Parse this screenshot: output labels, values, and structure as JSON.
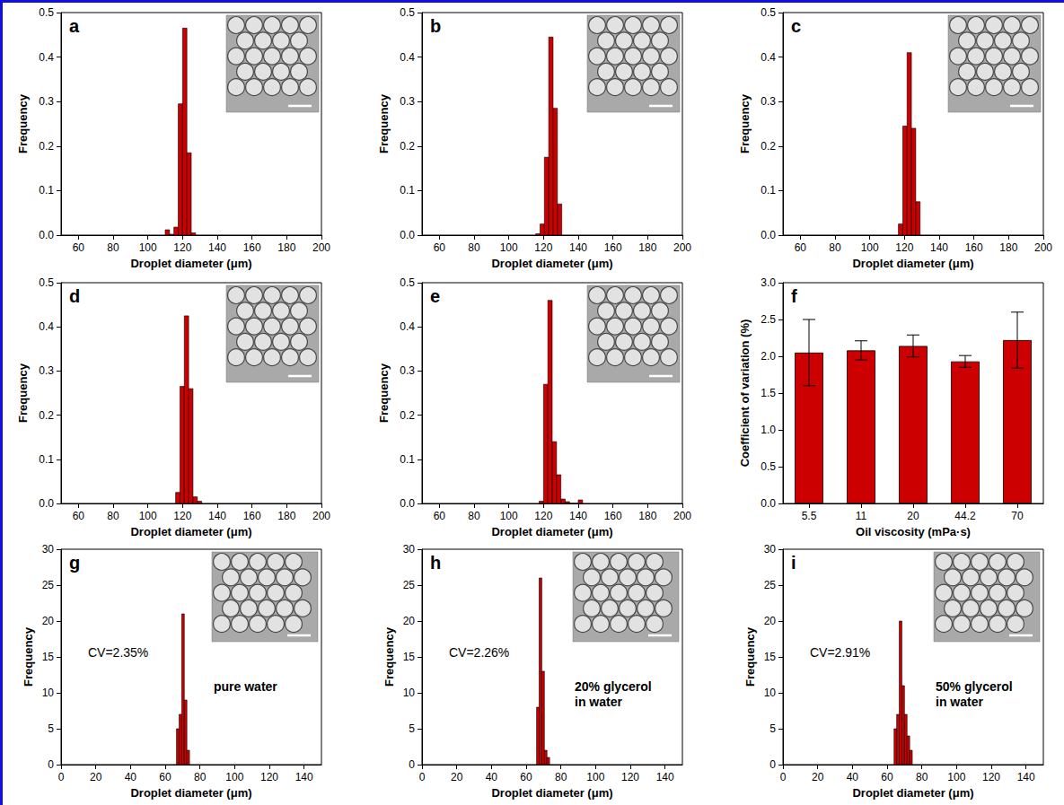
{
  "chart_data": [
    {
      "type": "histogram",
      "panel": "a",
      "x_label": "Droplet diameter (μm)",
      "y_label": "Frequency",
      "bins": [
        110,
        112.5,
        115,
        117.5,
        120,
        122.5,
        125,
        127.5
      ],
      "counts": [
        0.012,
        0.002,
        0.018,
        0.295,
        0.465,
        0.185,
        0.005
      ],
      "color": "#cc0000",
      "xlim": [
        50,
        200
      ],
      "xticks": [
        60,
        80,
        100,
        120,
        140,
        160,
        180,
        200
      ],
      "ylim": [
        0,
        0.5
      ],
      "yticks": [
        {
          "value": 0,
          "label": "0.0"
        },
        0.1,
        0.2,
        0.3,
        0.4,
        0.5
      ],
      "grid": false
    },
    {
      "type": "histogram",
      "panel": "b",
      "x_label": "Droplet diameter (μm)",
      "y_label": "Frequency",
      "bins": [
        115.5,
        118,
        120.5,
        123,
        125.5,
        128,
        130.5
      ],
      "counts": [
        0.003,
        0.025,
        0.175,
        0.445,
        0.285,
        0.07
      ],
      "color": "#cc0000",
      "xlim": [
        50,
        200
      ],
      "xticks": [
        60,
        80,
        100,
        120,
        140,
        160,
        180,
        200
      ],
      "ylim": [
        0,
        0.5
      ],
      "yticks": [
        {
          "value": 0,
          "label": "0.0"
        },
        0.1,
        0.2,
        0.3,
        0.4,
        0.5
      ],
      "grid": false
    },
    {
      "type": "histogram",
      "panel": "c",
      "x_label": "Droplet diameter (μm)",
      "y_label": "Frequency",
      "bins": [
        116.5,
        119,
        121.5,
        124,
        126.5,
        129
      ],
      "counts": [
        0.025,
        0.245,
        0.41,
        0.24,
        0.075
      ],
      "color": "#cc0000",
      "xlim": [
        50,
        200
      ],
      "xticks": [
        60,
        80,
        100,
        120,
        140,
        160,
        180,
        200
      ],
      "ylim": [
        0,
        0.5
      ],
      "yticks": [
        {
          "value": 0,
          "label": "0.0"
        },
        0.1,
        0.2,
        0.3,
        0.4,
        0.5
      ],
      "grid": false
    },
    {
      "type": "histogram",
      "panel": "d",
      "x_label": "Droplet diameter (μm)",
      "y_label": "Frequency",
      "bins": [
        116,
        118.5,
        121,
        123.5,
        126,
        128.5,
        131
      ],
      "counts": [
        0.025,
        0.265,
        0.425,
        0.26,
        0.015,
        0.005
      ],
      "color": "#cc0000",
      "xlim": [
        50,
        200
      ],
      "xticks": [
        60,
        80,
        100,
        120,
        140,
        160,
        180,
        200
      ],
      "ylim": [
        0,
        0.5
      ],
      "yticks": [
        {
          "value": 0,
          "label": "0.0"
        },
        0.1,
        0.2,
        0.3,
        0.4,
        0.5
      ],
      "grid": false
    },
    {
      "type": "histogram",
      "panel": "e",
      "x_label": "Droplet diameter (μm)",
      "y_label": "Frequency",
      "bins": [
        117.5,
        120,
        122.5,
        125,
        127.5,
        130,
        132.5,
        135,
        137.5,
        140,
        142.5
      ],
      "counts": [
        0.005,
        0.27,
        0.46,
        0.14,
        0.065,
        0.01,
        0.004,
        0,
        0,
        0.008
      ],
      "color": "#cc0000",
      "xlim": [
        50,
        200
      ],
      "xticks": [
        60,
        80,
        100,
        120,
        140,
        160,
        180,
        200
      ],
      "ylim": [
        0,
        0.5
      ],
      "yticks": [
        {
          "value": 0,
          "label": "0.0"
        },
        0.1,
        0.2,
        0.3,
        0.4,
        0.5
      ],
      "grid": false
    },
    {
      "type": "bar",
      "panel": "f",
      "x_label": "Oil viscosity (mPa·s)",
      "y_label": "Coefficient of variation (%)",
      "categories": [
        "5.5",
        "11",
        "20",
        "44.2",
        "70"
      ],
      "values": [
        2.05,
        2.08,
        2.14,
        1.93,
        2.22
      ],
      "errors": [
        0.45,
        0.13,
        0.15,
        0.08,
        0.38
      ],
      "color": "#cc0000",
      "ylim": [
        0,
        3
      ],
      "yticks": [
        {
          "value": 0,
          "label": "0.0"
        },
        0.5,
        {
          "value": 1,
          "label": "1.0"
        },
        1.5,
        {
          "value": 2,
          "label": "2.0"
        },
        2.5,
        {
          "value": 3,
          "label": "3.0"
        }
      ],
      "grid": false
    },
    {
      "type": "histogram",
      "panel": "g",
      "x_label": "Droplet diameter (μm)",
      "y_label": "Frequency",
      "annotations": [
        "CV=2.35%",
        "pure water"
      ],
      "bins": [
        66.5,
        68,
        69.5,
        71,
        72.5,
        74
      ],
      "counts": [
        5,
        7,
        21,
        9,
        2
      ],
      "color": "#cc0000",
      "xlim": [
        0,
        150
      ],
      "xticks": [
        0,
        20,
        40,
        60,
        80,
        100,
        120,
        140
      ],
      "ylim": [
        0,
        30
      ],
      "yticks": [
        0,
        5,
        10,
        15,
        20,
        25,
        30
      ],
      "grid": false
    },
    {
      "type": "histogram",
      "panel": "h",
      "x_label": "Droplet diameter (μm)",
      "y_label": "Frequency",
      "annotations": [
        "CV=2.26%",
        "20% glycerol in water"
      ],
      "bins": [
        66,
        67.5,
        69,
        70.5,
        72,
        73.5
      ],
      "counts": [
        8,
        26,
        13,
        2,
        1
      ],
      "color": "#cc0000",
      "xlim": [
        0,
        150
      ],
      "xticks": [
        0,
        20,
        40,
        60,
        80,
        100,
        120,
        140
      ],
      "ylim": [
        0,
        30
      ],
      "yticks": [
        0,
        5,
        10,
        15,
        20,
        25,
        30
      ],
      "grid": false
    },
    {
      "type": "histogram",
      "panel": "i",
      "x_label": "Droplet diameter (μm)",
      "y_label": "Frequency",
      "annotations": [
        "CV=2.91%",
        "50% glycerol in water"
      ],
      "bins": [
        64,
        65.5,
        67,
        68.5,
        70,
        71.5,
        73,
        74.5
      ],
      "counts": [
        5,
        7,
        20,
        11,
        7,
        4,
        2
      ],
      "color": "#cc0000",
      "xlim": [
        0,
        150
      ],
      "xticks": [
        0,
        20,
        40,
        60,
        80,
        100,
        120,
        140
      ],
      "ylim": [
        0,
        30
      ],
      "yticks": [
        0,
        5,
        10,
        15,
        20,
        25,
        30
      ],
      "grid": false
    }
  ]
}
